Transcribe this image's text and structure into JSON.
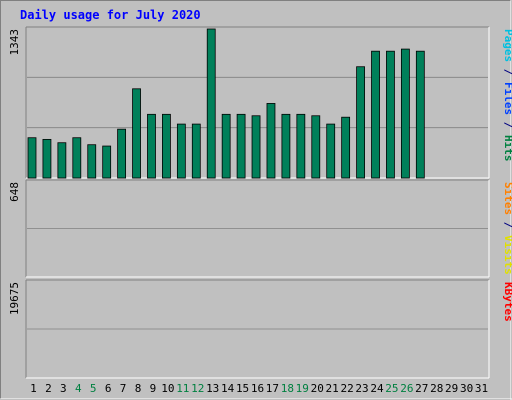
{
  "chart_data": {
    "type": "bar",
    "title": "Daily usage for July 2020",
    "categories": [
      "1",
      "2",
      "3",
      "4",
      "5",
      "6",
      "7",
      "8",
      "9",
      "10",
      "11",
      "12",
      "13",
      "14",
      "15",
      "16",
      "17",
      "18",
      "19",
      "20",
      "21",
      "22",
      "23",
      "24",
      "25",
      "26",
      "27",
      "28",
      "29",
      "30",
      "31"
    ],
    "weekend_days": [
      "4",
      "5",
      "11",
      "12",
      "18",
      "19",
      "25",
      "26"
    ],
    "panels": [
      {
        "id": "hits",
        "ymax": 1343,
        "tick_label": "1343",
        "side_label_parts": [
          {
            "text": "Pages",
            "color": "#00c0e0"
          },
          {
            "text": " / ",
            "color": "#000080"
          },
          {
            "text": "Files",
            "color": "#0040ff"
          },
          {
            "text": " / ",
            "color": "#000080"
          },
          {
            "text": "Hits",
            "color": "#008040"
          }
        ],
        "series": [
          {
            "name": "Hits",
            "color": "#00805a",
            "values": [
              363,
              348,
              318,
              363,
              300,
              288,
              440,
              804,
              574,
              574,
              486,
              486,
              1343,
              574,
              574,
              561,
              672,
              574,
              574,
              561,
              486,
              548,
              1003,
              1143,
              1143,
              1162,
              1143
            ]
          },
          {
            "name": "Files",
            "color": "#0040ff",
            "values": []
          },
          {
            "name": "Pages",
            "color": "#00d0f0",
            "values": []
          }
        ]
      },
      {
        "id": "visits",
        "ymax": 648,
        "tick_label": "648",
        "side_label_parts": [
          {
            "text": "Sites",
            "color": "#ff8000"
          },
          {
            "text": " / ",
            "color": "#000080"
          },
          {
            "text": "Visits",
            "color": "#e0e000"
          }
        ],
        "series": [
          {
            "name": "Visits",
            "color": "#ffff00",
            "values": []
          },
          {
            "name": "Sites",
            "color": "#ff8800",
            "values": []
          }
        ]
      },
      {
        "id": "kbytes",
        "ymax": 19675,
        "tick_label": "19675",
        "side_label_parts": [
          {
            "text": "KBytes",
            "color": "#ff0000"
          }
        ],
        "series": [
          {
            "name": "KBytes",
            "color": "#ff0000",
            "values": []
          }
        ]
      }
    ],
    "colors": {
      "background": "#c0c0c0",
      "plot_background": "#c0c0c0",
      "title": "#0000ff",
      "weekday_label": "#000000",
      "weekend_label": "#008040"
    }
  }
}
